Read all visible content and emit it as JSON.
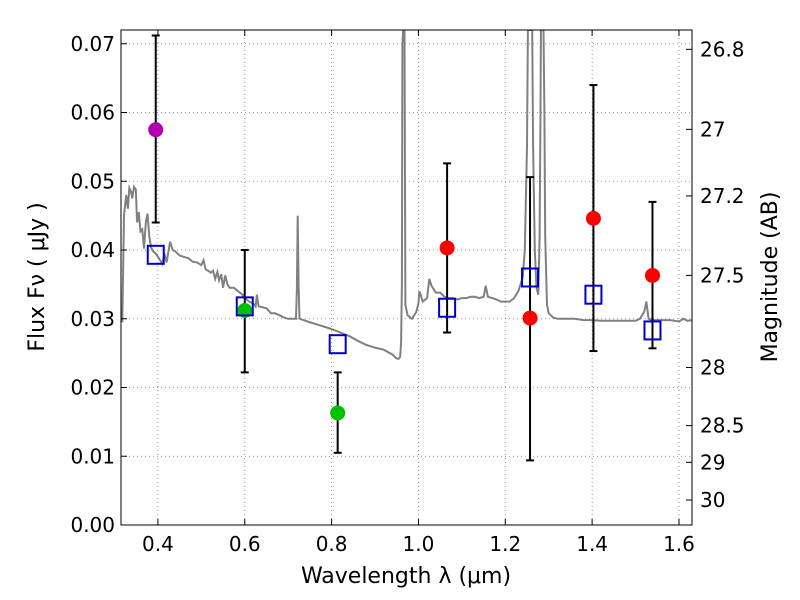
{
  "chart_data": {
    "type": "scatter",
    "title": "",
    "xlabel": "Wavelength  λ (μm)",
    "ylabel": "Flux  Fν  ( μJy )",
    "y2label": "Magnitude (AB)",
    "xlim": [
      0.315,
      1.63
    ],
    "ylim": [
      0.0,
      0.072
    ],
    "grid": true,
    "x_ticks": [
      0.4,
      0.6,
      0.8,
      1.0,
      1.2,
      1.4,
      1.6
    ],
    "x_tick_labels": [
      "0.4",
      "0.6",
      "0.8",
      "1.0",
      "1.2",
      "1.4",
      "1.6"
    ],
    "y_ticks": [
      0.0,
      0.01,
      0.02,
      0.03,
      0.04,
      0.05,
      0.06,
      0.07
    ],
    "y_tick_labels": [
      "0.00",
      "0.01",
      "0.02",
      "0.03",
      "0.04",
      "0.05",
      "0.06",
      "0.07"
    ],
    "mag_ticks": [
      26.8,
      27,
      27.2,
      27.5,
      28,
      28.5,
      29,
      30
    ],
    "mag_tick_labels": [
      "26.8",
      "27",
      "27.2",
      "27.5",
      "28",
      "28.5",
      "29",
      "30"
    ],
    "colors": {
      "template": "#808080",
      "model_box": "#0000cc",
      "errorbar": "#000000",
      "grid": "#808080"
    },
    "template_spectrum": [
      [
        0.315,
        0.03
      ],
      [
        0.318,
        0.0295
      ],
      [
        0.322,
        0.045
      ],
      [
        0.327,
        0.048
      ],
      [
        0.331,
        0.046
      ],
      [
        0.334,
        0.049
      ],
      [
        0.338,
        0.0485
      ],
      [
        0.341,
        0.0475
      ],
      [
        0.345,
        0.0492
      ],
      [
        0.349,
        0.0488
      ],
      [
        0.352,
        0.044
      ],
      [
        0.356,
        0.0455
      ],
      [
        0.36,
        0.0427
      ],
      [
        0.364,
        0.043
      ],
      [
        0.368,
        0.0402
      ],
      [
        0.372,
        0.044
      ],
      [
        0.376,
        0.0453
      ],
      [
        0.38,
        0.0421
      ],
      [
        0.384,
        0.0404
      ],
      [
        0.389,
        0.0398
      ],
      [
        0.395,
        0.0395
      ],
      [
        0.402,
        0.0388
      ],
      [
        0.41,
        0.038
      ],
      [
        0.415,
        0.0395
      ],
      [
        0.42,
        0.0382
      ],
      [
        0.428,
        0.0412
      ],
      [
        0.434,
        0.04
      ],
      [
        0.44,
        0.0398
      ],
      [
        0.45,
        0.0392
      ],
      [
        0.46,
        0.039
      ],
      [
        0.47,
        0.0388
      ],
      [
        0.48,
        0.0383
      ],
      [
        0.49,
        0.0382
      ],
      [
        0.5,
        0.0378
      ],
      [
        0.505,
        0.0385
      ],
      [
        0.51,
        0.0372
      ],
      [
        0.515,
        0.037
      ],
      [
        0.522,
        0.0367
      ],
      [
        0.527,
        0.037
      ],
      [
        0.532,
        0.0358
      ],
      [
        0.537,
        0.0368
      ],
      [
        0.541,
        0.0356
      ],
      [
        0.546,
        0.0365
      ],
      [
        0.55,
        0.0345
      ],
      [
        0.555,
        0.0363
      ],
      [
        0.56,
        0.035
      ],
      [
        0.565,
        0.0345
      ],
      [
        0.575,
        0.0345
      ],
      [
        0.585,
        0.034
      ],
      [
        0.595,
        0.0335
      ],
      [
        0.6,
        0.033
      ],
      [
        0.61,
        0.0325
      ],
      [
        0.62,
        0.0322
      ],
      [
        0.625,
        0.0318
      ],
      [
        0.628,
        0.0335
      ],
      [
        0.632,
        0.0318
      ],
      [
        0.64,
        0.0317
      ],
      [
        0.65,
        0.0315
      ],
      [
        0.655,
        0.0312
      ],
      [
        0.66,
        0.0308
      ],
      [
        0.67,
        0.0308
      ],
      [
        0.68,
        0.0305
      ],
      [
        0.69,
        0.0302
      ],
      [
        0.7,
        0.03
      ],
      [
        0.71,
        0.03
      ],
      [
        0.718,
        0.03
      ],
      [
        0.72,
        0.0345
      ],
      [
        0.722,
        0.045
      ],
      [
        0.724,
        0.035
      ],
      [
        0.726,
        0.03
      ],
      [
        0.735,
        0.0298
      ],
      [
        0.745,
        0.0296
      ],
      [
        0.755,
        0.0294
      ],
      [
        0.765,
        0.0292
      ],
      [
        0.775,
        0.029
      ],
      [
        0.785,
        0.0288
      ],
      [
        0.8,
        0.0285
      ],
      [
        0.82,
        0.028
      ],
      [
        0.84,
        0.0275
      ],
      [
        0.86,
        0.0268
      ],
      [
        0.88,
        0.0262
      ],
      [
        0.9,
        0.0258
      ],
      [
        0.92,
        0.0255
      ],
      [
        0.94,
        0.0248
      ],
      [
        0.95,
        0.0242
      ],
      [
        0.955,
        0.0242
      ],
      [
        0.958,
        0.0245
      ],
      [
        0.96,
        0.0265
      ],
      [
        0.962,
        0.035
      ],
      [
        0.963,
        0.07
      ],
      [
        0.965,
        0.072
      ],
      [
        0.968,
        0.072
      ],
      [
        0.969,
        0.05
      ],
      [
        0.97,
        0.032
      ],
      [
        0.975,
        0.0305
      ],
      [
        0.985,
        0.03
      ],
      [
        0.995,
        0.031
      ],
      [
        1.0,
        0.0322
      ],
      [
        1.002,
        0.034
      ],
      [
        1.005,
        0.0335
      ],
      [
        1.01,
        0.0325
      ],
      [
        1.02,
        0.033
      ],
      [
        1.025,
        0.0358
      ],
      [
        1.03,
        0.0348
      ],
      [
        1.04,
        0.0338
      ],
      [
        1.05,
        0.0338
      ],
      [
        1.06,
        0.0332
      ],
      [
        1.07,
        0.033
      ],
      [
        1.08,
        0.033
      ],
      [
        1.09,
        0.0328
      ],
      [
        1.1,
        0.033
      ],
      [
        1.11,
        0.033
      ],
      [
        1.12,
        0.0332
      ],
      [
        1.13,
        0.0332
      ],
      [
        1.14,
        0.033
      ],
      [
        1.15,
        0.0332
      ],
      [
        1.155,
        0.0348
      ],
      [
        1.16,
        0.0332
      ],
      [
        1.17,
        0.033
      ],
      [
        1.18,
        0.0328
      ],
      [
        1.19,
        0.0325
      ],
      [
        1.2,
        0.0325
      ],
      [
        1.21,
        0.0325
      ],
      [
        1.22,
        0.033
      ],
      [
        1.23,
        0.034
      ],
      [
        1.24,
        0.036
      ],
      [
        1.245,
        0.04
      ],
      [
        1.25,
        0.055
      ],
      [
        1.252,
        0.072
      ],
      [
        1.262,
        0.072
      ],
      [
        1.264,
        0.055
      ],
      [
        1.268,
        0.04
      ],
      [
        1.272,
        0.0345
      ],
      [
        1.276,
        0.0335
      ],
      [
        1.279,
        0.042
      ],
      [
        1.281,
        0.06
      ],
      [
        1.282,
        0.072
      ],
      [
        1.288,
        0.072
      ],
      [
        1.29,
        0.06
      ],
      [
        1.292,
        0.042
      ],
      [
        1.296,
        0.032
      ],
      [
        1.3,
        0.0308
      ],
      [
        1.31,
        0.0302
      ],
      [
        1.32,
        0.03
      ],
      [
        1.34,
        0.03
      ],
      [
        1.36,
        0.03
      ],
      [
        1.38,
        0.0298
      ],
      [
        1.4,
        0.0298
      ],
      [
        1.42,
        0.0297
      ],
      [
        1.44,
        0.0297
      ],
      [
        1.46,
        0.0297
      ],
      [
        1.48,
        0.0297
      ],
      [
        1.5,
        0.0297
      ],
      [
        1.51,
        0.03
      ],
      [
        1.52,
        0.031
      ],
      [
        1.525,
        0.0325
      ],
      [
        1.53,
        0.03
      ],
      [
        1.54,
        0.0298
      ],
      [
        1.56,
        0.0298
      ],
      [
        1.58,
        0.0298
      ],
      [
        1.6,
        0.0296
      ],
      [
        1.61,
        0.03
      ],
      [
        1.62,
        0.0297
      ],
      [
        1.63,
        0.0298
      ]
    ],
    "model_points": [
      {
        "x": 0.395,
        "y": 0.0393
      },
      {
        "x": 0.6,
        "y": 0.0318
      },
      {
        "x": 0.814,
        "y": 0.0263
      },
      {
        "x": 1.066,
        "y": 0.0316
      },
      {
        "x": 1.257,
        "y": 0.036
      },
      {
        "x": 1.403,
        "y": 0.0335
      },
      {
        "x": 1.539,
        "y": 0.0283
      }
    ],
    "observed_points": [
      {
        "x": 0.395,
        "y": 0.0575,
        "err_low": 0.044,
        "err_high": 0.0712,
        "color": "#b000b0"
      },
      {
        "x": 0.6,
        "y": 0.0312,
        "err_low": 0.0222,
        "err_high": 0.04,
        "color": "#00c000"
      },
      {
        "x": 0.814,
        "y": 0.0163,
        "err_low": 0.0105,
        "err_high": 0.0222,
        "color": "#00c000"
      },
      {
        "x": 1.066,
        "y": 0.0403,
        "err_low": 0.028,
        "err_high": 0.0526,
        "color": "#ff0000"
      },
      {
        "x": 1.257,
        "y": 0.0301,
        "err_low": 0.0094,
        "err_high": 0.0506,
        "color": "#ff0000"
      },
      {
        "x": 1.403,
        "y": 0.0446,
        "err_low": 0.0253,
        "err_high": 0.064,
        "color": "#ff0000"
      },
      {
        "x": 1.539,
        "y": 0.0363,
        "err_low": 0.0257,
        "err_high": 0.047,
        "color": "#ff0000"
      }
    ]
  }
}
